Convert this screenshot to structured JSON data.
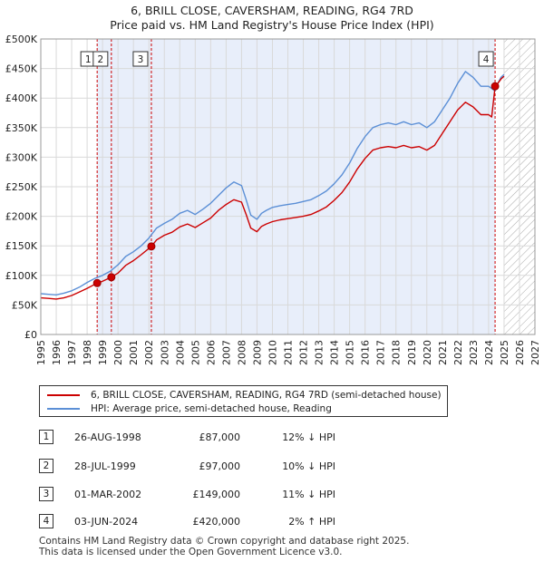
{
  "title_line1": "6, BRILL CLOSE, CAVERSHAM, READING, RG4 7RD",
  "title_line2": "Price paid vs. HM Land Registry's House Price Index (HPI)",
  "legend": {
    "property_label": "6, BRILL CLOSE, CAVERSHAM, READING, RG4 7RD (semi-detached house)",
    "hpi_label": "HPI: Average price, semi-detached house, Reading"
  },
  "colors": {
    "property": "#cc0000",
    "hpi": "#5b8fd6",
    "shade": "#e8eefa"
  },
  "transactions": [
    {
      "num": "1",
      "date": "26-AUG-1998",
      "price": "£87,000",
      "hpi": "12% ↓ HPI"
    },
    {
      "num": "2",
      "date": "28-JUL-1999",
      "price": "£97,000",
      "hpi": "10% ↓ HPI"
    },
    {
      "num": "3",
      "date": "01-MAR-2002",
      "price": "£149,000",
      "hpi": "11% ↓ HPI"
    },
    {
      "num": "4",
      "date": "03-JUN-2024",
      "price": "£420,000",
      "hpi": "2% ↑ HPI"
    }
  ],
  "footer": {
    "line1": "Contains HM Land Registry data © Crown copyright and database right 2025.",
    "line2": "This data is licensed under the Open Government Licence v3.0."
  },
  "chart_data": {
    "type": "line",
    "title": "6, BRILL CLOSE, CAVERSHAM, READING, RG4 7RD",
    "subtitle": "Price paid vs. HM Land Registry's House Price Index (HPI)",
    "xlim": [
      1995,
      2027
    ],
    "ylim": [
      0,
      500000
    ],
    "x_ticks": [
      1995,
      1996,
      1997,
      1998,
      1999,
      2000,
      2001,
      2002,
      2003,
      2004,
      2005,
      2006,
      2007,
      2008,
      2009,
      2010,
      2011,
      2012,
      2013,
      2014,
      2015,
      2016,
      2017,
      2018,
      2019,
      2020,
      2021,
      2022,
      2023,
      2024,
      2025,
      2026,
      2027
    ],
    "y_ticks": [
      0,
      50000,
      100000,
      150000,
      200000,
      250000,
      300000,
      350000,
      400000,
      450000,
      500000
    ],
    "y_tick_labels": [
      "£0",
      "£50K",
      "£100K",
      "£150K",
      "£200K",
      "£250K",
      "£300K",
      "£350K",
      "£400K",
      "£450K",
      "£500K"
    ],
    "series": [
      {
        "name": "HPI: Average price, semi-detached house, Reading",
        "x": [
          1995,
          1995.5,
          1996,
          1996.5,
          1997,
          1997.5,
          1998,
          1998.5,
          1999,
          1999.5,
          2000,
          2000.5,
          2001,
          2001.5,
          2002,
          2002.5,
          2003,
          2003.5,
          2004,
          2004.5,
          2005,
          2005.5,
          2006,
          2006.5,
          2007,
          2007.5,
          2008,
          2008.3,
          2008.6,
          2009,
          2009.3,
          2009.6,
          2010,
          2010.5,
          2011,
          2011.5,
          2012,
          2012.5,
          2013,
          2013.5,
          2014,
          2014.5,
          2015,
          2015.5,
          2016,
          2016.5,
          2017,
          2017.5,
          2018,
          2018.5,
          2019,
          2019.5,
          2020,
          2020.5,
          2021,
          2021.5,
          2022,
          2022.5,
          2023,
          2023.5,
          2024,
          2024.42,
          2024.6,
          2024.8,
          2025
        ],
        "y": [
          69000,
          68000,
          67000,
          70000,
          74000,
          80000,
          88000,
          95000,
          100000,
          107000,
          118000,
          132000,
          140000,
          150000,
          163000,
          180000,
          188000,
          195000,
          205000,
          210000,
          203000,
          212000,
          222000,
          235000,
          248000,
          258000,
          252000,
          228000,
          202000,
          195000,
          205000,
          210000,
          215000,
          218000,
          220000,
          222000,
          225000,
          228000,
          235000,
          243000,
          255000,
          270000,
          290000,
          315000,
          335000,
          350000,
          355000,
          358000,
          355000,
          360000,
          355000,
          358000,
          350000,
          360000,
          380000,
          400000,
          425000,
          445000,
          435000,
          420000,
          420000,
          412000,
          425000,
          435000,
          440000
        ]
      },
      {
        "name": "6, BRILL CLOSE, CAVERSHAM, READING, RG4 7RD (semi-detached house)",
        "x": [
          1995,
          1995.5,
          1996,
          1996.5,
          1997,
          1997.5,
          1998,
          1998.65,
          1999,
          1999.57,
          2000,
          2000.5,
          2001,
          2001.5,
          2002.16,
          2002.5,
          2003,
          2003.5,
          2004,
          2004.5,
          2005,
          2005.5,
          2006,
          2006.5,
          2007,
          2007.5,
          2008,
          2008.3,
          2008.6,
          2009,
          2009.3,
          2009.6,
          2010,
          2010.5,
          2011,
          2011.5,
          2012,
          2012.5,
          2013,
          2013.5,
          2014,
          2014.5,
          2015,
          2015.5,
          2016,
          2016.5,
          2017,
          2017.5,
          2018,
          2018.5,
          2019,
          2019.5,
          2020,
          2020.5,
          2021,
          2021.5,
          2022,
          2022.5,
          2023,
          2023.5,
          2024,
          2024.2,
          2024.42,
          2024.6,
          2024.8,
          2025
        ],
        "y": [
          62000,
          61000,
          60000,
          62000,
          66000,
          72000,
          78000,
          87000,
          90000,
          97000,
          104000,
          117000,
          125000,
          135000,
          149000,
          160000,
          168000,
          173000,
          182000,
          187000,
          181000,
          189000,
          197000,
          210000,
          220000,
          228000,
          224000,
          203000,
          180000,
          174000,
          183000,
          187000,
          191000,
          194000,
          196000,
          198000,
          200000,
          203000,
          209000,
          216000,
          227000,
          240000,
          258000,
          280000,
          298000,
          312000,
          316000,
          318000,
          316000,
          320000,
          316000,
          318000,
          312000,
          320000,
          340000,
          360000,
          380000,
          393000,
          385000,
          372000,
          372000,
          368000,
          420000,
          425000,
          432000,
          437000
        ]
      }
    ],
    "sales": [
      {
        "label": "1",
        "x": 1998.65,
        "y": 87000
      },
      {
        "label": "2",
        "x": 1999.57,
        "y": 97000
      },
      {
        "label": "3",
        "x": 2002.16,
        "y": 149000
      },
      {
        "label": "4",
        "x": 2024.42,
        "y": 420000
      }
    ],
    "shaded_region": [
      1998.65,
      2024.42
    ],
    "hatched_region": [
      2025,
      2027
    ]
  }
}
